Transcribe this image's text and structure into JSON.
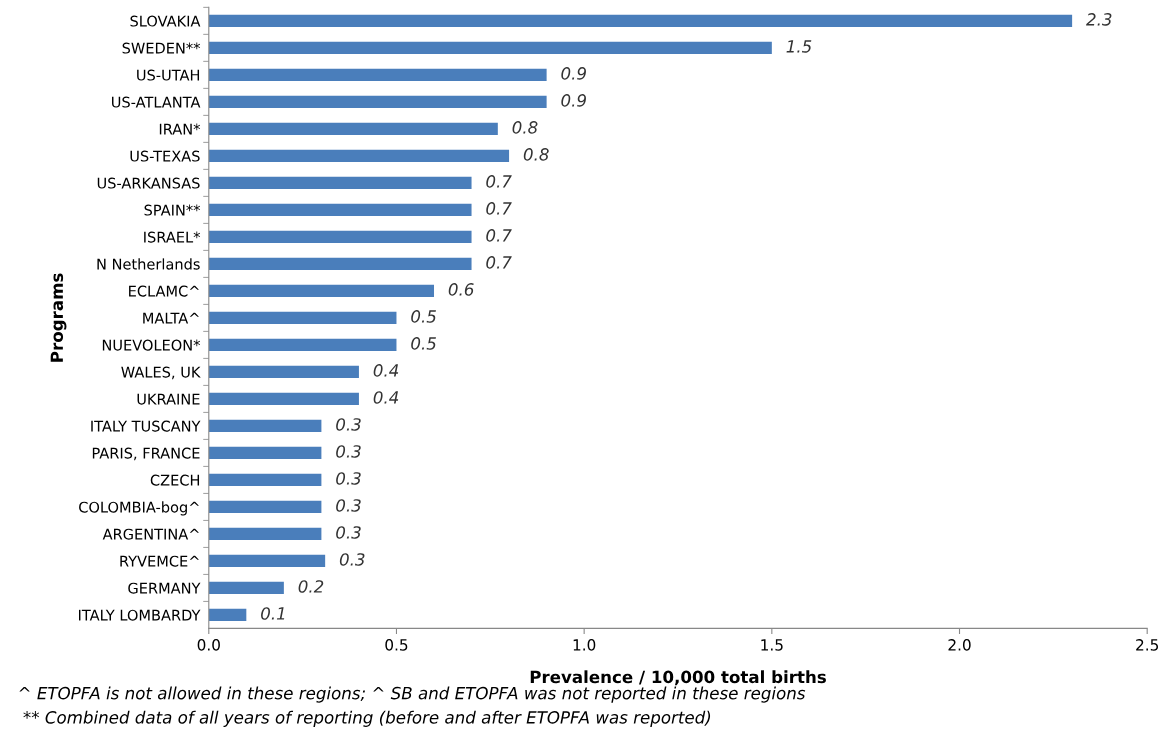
{
  "chart_data": {
    "type": "bar",
    "orientation": "horizontal",
    "categories": [
      "SLOVAKIA",
      "SWEDEN**",
      "US-UTAH",
      "US-ATLANTA",
      "IRAN*",
      "US-TEXAS",
      "US-ARKANSAS",
      "SPAIN**",
      "ISRAEL*",
      "N Netherlands",
      "ECLAMC^",
      "MALTA^",
      "NUEVOLEON*",
      "WALES, UK",
      "UKRAINE",
      "ITALY TUSCANY",
      "PARIS, FRANCE",
      "CZECH",
      "COLOMBIA-bog^",
      "ARGENTINA^",
      "RYVEMCE^",
      "GERMANY",
      "ITALY LOMBARDY"
    ],
    "values": [
      2.3,
      1.5,
      0.9,
      0.9,
      0.77,
      0.8,
      0.7,
      0.7,
      0.7,
      0.7,
      0.6,
      0.5,
      0.5,
      0.4,
      0.4,
      0.3,
      0.3,
      0.3,
      0.3,
      0.3,
      0.31,
      0.2,
      0.1
    ],
    "value_labels": [
      "2.3",
      "1.5",
      "0.9",
      "0.9",
      "0.8",
      "0.8",
      "0.7",
      "0.7",
      "0.7",
      "0.7",
      "0.6",
      "0.5",
      "0.5",
      "0.4",
      "0.4",
      "0.3",
      "0.3",
      "0.3",
      "0.3",
      "0.3",
      "0.3",
      "0.2",
      "0.1"
    ],
    "color": "#4a7ebb",
    "xlim": [
      0,
      2.5
    ],
    "xticks": [
      {
        "value": 0,
        "label": "0.0"
      },
      {
        "value": 0.5,
        "label": "0.5"
      },
      {
        "value": 1,
        "label": "1.0"
      },
      {
        "value": 1.5,
        "label": "1.5"
      },
      {
        "value": 2,
        "label": "2.0"
      },
      {
        "value": 2.5,
        "label": "2.5"
      }
    ],
    "xlabel": "Prevalence / 10,000 total births",
    "ylabel": "Programs",
    "grid": false,
    "legend": false,
    "annotations": [
      "^ ETOPFA is not allowed in these regions; ^ SB and ETOPFA was not reported in these regions",
      " ** Combined data of all years of reporting (before and after ETOPFA was reported)"
    ]
  }
}
